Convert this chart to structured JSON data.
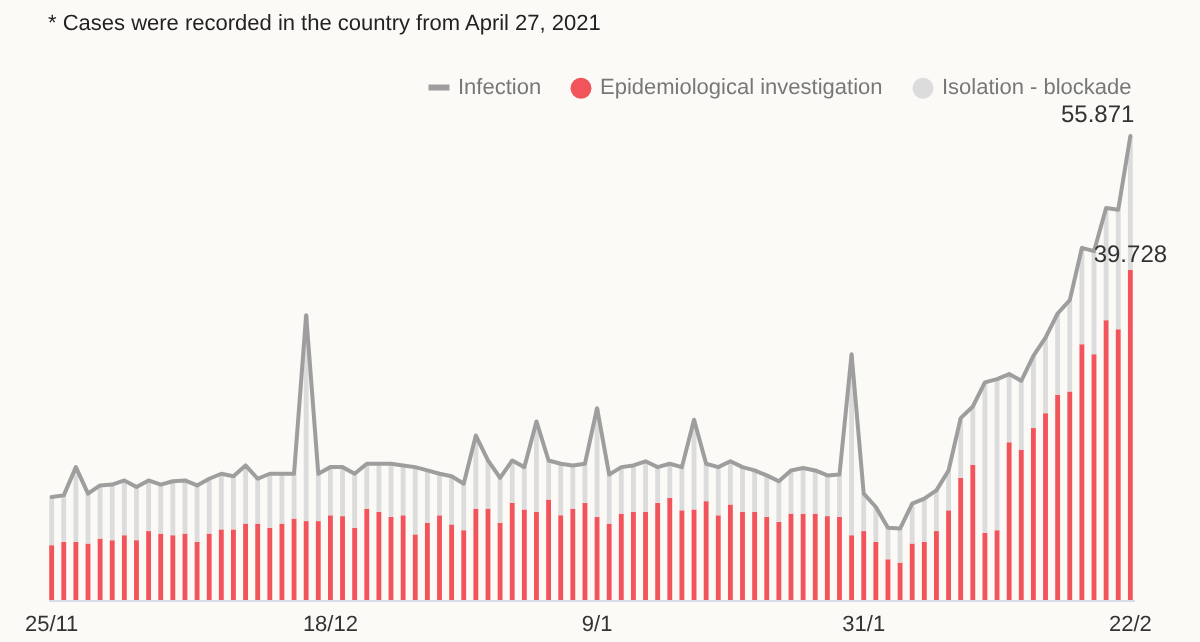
{
  "chart_data": {
    "type": "bar",
    "stacked": true,
    "legend": "top right",
    "annotations": [
      "* Cases were recorded in the country from April 27, 2021"
    ],
    "categories": [
      "25/11",
      null,
      null,
      null,
      null,
      null,
      null,
      null,
      null,
      null,
      null,
      null,
      null,
      null,
      null,
      null,
      null,
      null,
      null,
      null,
      null,
      null,
      null,
      "18/12",
      null,
      null,
      null,
      null,
      null,
      null,
      null,
      null,
      null,
      null,
      null,
      null,
      null,
      null,
      null,
      null,
      null,
      null,
      null,
      null,
      null,
      "9/1",
      null,
      null,
      null,
      null,
      null,
      null,
      null,
      null,
      null,
      null,
      null,
      null,
      null,
      null,
      null,
      null,
      null,
      null,
      null,
      null,
      null,
      "31/1",
      null,
      null,
      null,
      null,
      null,
      null,
      null,
      null,
      null,
      null,
      null,
      null,
      null,
      null,
      null,
      null,
      null,
      null,
      null,
      null,
      null,
      "22/2"
    ],
    "series": [
      {
        "name": "Infection",
        "type": "line",
        "color": "#9e9e9e",
        "values": [
          12.4,
          12.6,
          16.0,
          12.8,
          13.8,
          13.9,
          14.4,
          13.6,
          14.4,
          13.9,
          14.3,
          14.4,
          13.8,
          14.6,
          15.2,
          14.9,
          16.2,
          14.6,
          15.2,
          15.2,
          15.2,
          34.3,
          15.2,
          16.0,
          16.0,
          15.2,
          16.4,
          16.4,
          16.4,
          16.2,
          16.0,
          15.6,
          15.2,
          14.9,
          14.0,
          19.8,
          16.8,
          14.7,
          16.8,
          16.0,
          21.5,
          16.8,
          16.4,
          16.2,
          16.4,
          23.1,
          15.1,
          16.0,
          16.2,
          16.7,
          16.0,
          16.4,
          16.0,
          21.7,
          16.4,
          16.0,
          16.7,
          16.0,
          15.6,
          15.0,
          14.3,
          15.6,
          15.9,
          15.6,
          15.0,
          15.1,
          29.6,
          12.8,
          11.2,
          8.7,
          8.6,
          11.6,
          12.2,
          13.2,
          15.6,
          21.9,
          23.3,
          26.2,
          26.6,
          27.2,
          26.4,
          29.4,
          31.6,
          34.5,
          36.1,
          42.4,
          42.0,
          47.2,
          47.0,
          55.871
        ],
        "value_labels": [
          null,
          null,
          null,
          null,
          null,
          null,
          null,
          null,
          null,
          null,
          null,
          null,
          null,
          null,
          null,
          null,
          null,
          null,
          null,
          null,
          null,
          null,
          null,
          null,
          null,
          null,
          null,
          null,
          null,
          null,
          null,
          null,
          null,
          null,
          null,
          null,
          null,
          null,
          null,
          null,
          null,
          null,
          null,
          null,
          null,
          null,
          null,
          null,
          null,
          null,
          null,
          null,
          null,
          null,
          null,
          null,
          null,
          null,
          null,
          null,
          null,
          null,
          null,
          null,
          null,
          null,
          null,
          null,
          null,
          null,
          null,
          null,
          null,
          null,
          null,
          null,
          null,
          null,
          null,
          null,
          null,
          null,
          null,
          null,
          null,
          null,
          null,
          null,
          null,
          "55.871"
        ]
      },
      {
        "name": "Epidemiological investigation",
        "color": "#f2545b",
        "values": [
          6.6,
          7.0,
          7.0,
          6.8,
          7.4,
          7.2,
          7.8,
          7.2,
          8.3,
          8.0,
          7.8,
          8.0,
          7.0,
          8.0,
          8.5,
          8.5,
          9.2,
          9.2,
          8.7,
          9.2,
          9.8,
          9.5,
          9.5,
          10.2,
          10.1,
          8.7,
          11.0,
          10.6,
          10.0,
          10.2,
          7.9,
          9.3,
          10.2,
          9.1,
          8.4,
          11.0,
          11.0,
          9.3,
          11.7,
          10.9,
          10.6,
          12.1,
          10.2,
          11.0,
          11.7,
          10.0,
          9.2,
          10.4,
          10.6,
          10.6,
          11.7,
          12.3,
          10.8,
          10.9,
          11.9,
          10.2,
          11.5,
          10.6,
          10.6,
          10.0,
          9.4,
          10.4,
          10.4,
          10.4,
          10.1,
          10.0,
          7.8,
          8.3,
          7.0,
          4.9,
          4.5,
          6.8,
          7.0,
          8.3,
          10.8,
          14.7,
          16.3,
          8.1,
          8.4,
          19.0,
          18.1,
          20.7,
          22.5,
          24.7,
          25.1,
          30.8,
          29.6,
          33.7,
          32.6,
          39.728
        ],
        "value_labels": [
          null,
          null,
          null,
          null,
          null,
          null,
          null,
          null,
          null,
          null,
          null,
          null,
          null,
          null,
          null,
          null,
          null,
          null,
          null,
          null,
          null,
          null,
          null,
          null,
          null,
          null,
          null,
          null,
          null,
          null,
          null,
          null,
          null,
          null,
          null,
          null,
          null,
          null,
          null,
          null,
          null,
          null,
          null,
          null,
          null,
          null,
          null,
          null,
          null,
          null,
          null,
          null,
          null,
          null,
          null,
          null,
          null,
          null,
          null,
          null,
          null,
          null,
          null,
          null,
          null,
          null,
          null,
          null,
          null,
          null,
          null,
          null,
          null,
          null,
          null,
          null,
          null,
          null,
          null,
          null,
          null,
          null,
          null,
          null,
          null,
          null,
          null,
          null,
          null,
          "39.728"
        ]
      },
      {
        "name": "Isolation - blockade",
        "color": "#dcdcdc",
        "values": [
          5.8,
          5.6,
          9.0,
          6.0,
          6.4,
          6.7,
          6.6,
          6.4,
          6.1,
          5.9,
          6.5,
          6.4,
          6.8,
          6.6,
          6.7,
          6.4,
          7.0,
          5.4,
          6.5,
          6.0,
          5.4,
          24.8,
          5.7,
          5.8,
          5.9,
          6.5,
          5.4,
          5.8,
          6.4,
          6.0,
          8.1,
          6.3,
          5.0,
          5.8,
          5.6,
          8.8,
          5.8,
          5.4,
          5.1,
          5.1,
          10.9,
          4.7,
          6.2,
          5.2,
          4.7,
          13.1,
          5.9,
          5.6,
          5.6,
          6.1,
          4.3,
          4.1,
          5.2,
          10.8,
          4.5,
          5.8,
          5.2,
          5.4,
          5.0,
          5.0,
          4.9,
          5.2,
          5.5,
          5.2,
          4.9,
          5.1,
          21.8,
          4.5,
          4.2,
          3.8,
          4.1,
          4.8,
          5.2,
          4.9,
          4.8,
          7.2,
          7.0,
          18.1,
          18.2,
          8.2,
          8.3,
          8.7,
          9.1,
          9.8,
          11.0,
          11.6,
          12.4,
          13.5,
          14.4,
          16.143
        ]
      }
    ]
  }
}
